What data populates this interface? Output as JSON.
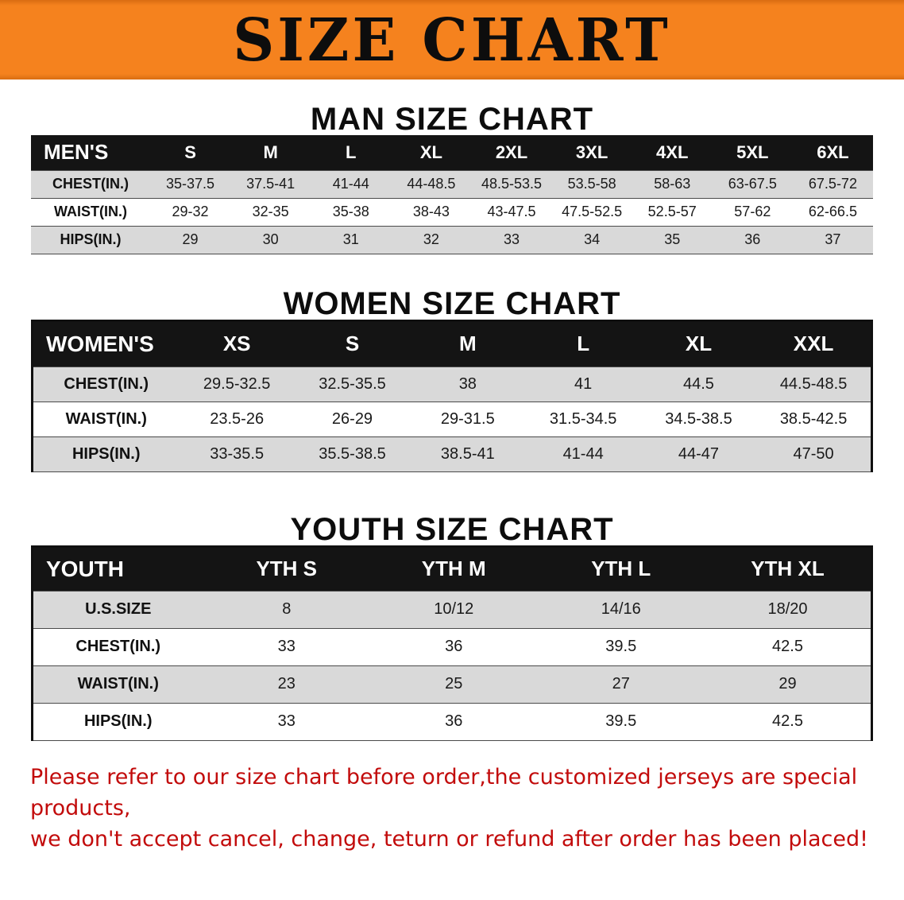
{
  "banner": {
    "title": "SIZE CHART"
  },
  "sections": {
    "men": {
      "heading": "MAN SIZE CHART",
      "table": {
        "header": [
          "MEN'S",
          "S",
          "M",
          "L",
          "XL",
          "2XL",
          "3XL",
          "4XL",
          "5XL",
          "6XL"
        ],
        "rows": [
          [
            "CHEST(IN.)",
            "35-37.5",
            "37.5-41",
            "41-44",
            "44-48.5",
            "48.5-53.5",
            "53.5-58",
            "58-63",
            "63-67.5",
            "67.5-72"
          ],
          [
            "WAIST(IN.)",
            "29-32",
            "32-35",
            "35-38",
            "38-43",
            "43-47.5",
            "47.5-52.5",
            "52.5-57",
            "57-62",
            "62-66.5"
          ],
          [
            "HIPS(IN.)",
            "29",
            "30",
            "31",
            "32",
            "33",
            "34",
            "35",
            "36",
            "37"
          ]
        ]
      }
    },
    "women": {
      "heading": "WOMEN SIZE CHART",
      "table": {
        "header": [
          "WOMEN'S",
          "XS",
          "S",
          "M",
          "L",
          "XL",
          "XXL"
        ],
        "rows": [
          [
            "CHEST(IN.)",
            "29.5-32.5",
            "32.5-35.5",
            "38",
            "41",
            "44.5",
            "44.5-48.5"
          ],
          [
            "WAIST(IN.)",
            "23.5-26",
            "26-29",
            "29-31.5",
            "31.5-34.5",
            "34.5-38.5",
            "38.5-42.5"
          ],
          [
            "HIPS(IN.)",
            "33-35.5",
            "35.5-38.5",
            "38.5-41",
            "41-44",
            "44-47",
            "47-50"
          ]
        ]
      }
    },
    "youth": {
      "heading": "YOUTH SIZE CHART",
      "table": {
        "header": [
          "YOUTH",
          "YTH S",
          "YTH M",
          "YTH L",
          "YTH XL"
        ],
        "rows": [
          [
            "U.S.SIZE",
            "8",
            "10/12",
            "14/16",
            "18/20"
          ],
          [
            "CHEST(IN.)",
            "33",
            "36",
            "39.5",
            "42.5"
          ],
          [
            "WAIST(IN.)",
            "23",
            "25",
            "27",
            "29"
          ],
          [
            "HIPS(IN.)",
            "33",
            "36",
            "39.5",
            "42.5"
          ]
        ]
      }
    }
  },
  "disclaimer": {
    "line1": "Please refer to our size chart before order,the customized jerseys are special products,",
    "line2": "we don't accept cancel, change, teturn or refund after order has been placed!"
  },
  "colors": {
    "banner_orange": "#F5821E",
    "header_black": "#141414",
    "row_gray": "#D9D9D9",
    "disclaimer_red": "#C20B0B"
  }
}
